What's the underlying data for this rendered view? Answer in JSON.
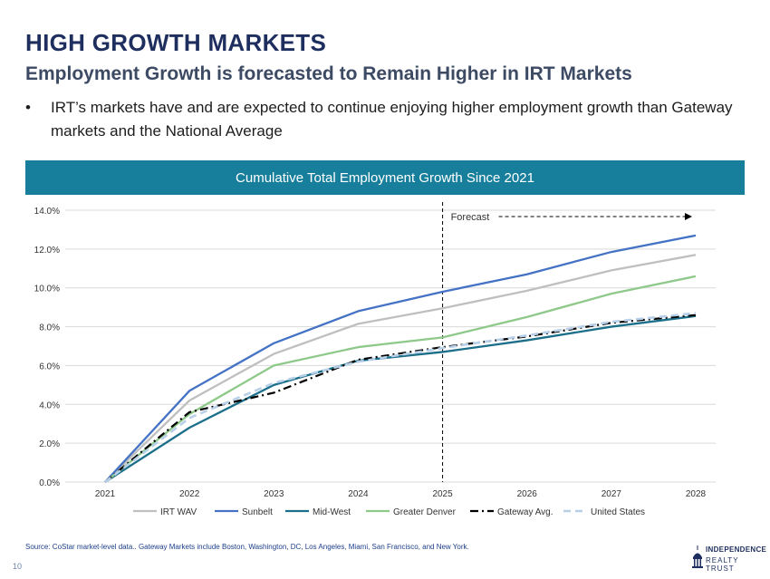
{
  "slide": {
    "title": "HIGH GROWTH MARKETS",
    "subtitle": "Employment Growth is forecasted to Remain Higher in IRT Markets",
    "bullet_marker": "•",
    "bullet": "IRT’s markets have and are expected to continue enjoying higher employment growth than Gateway markets and the National Average",
    "source": "Source: CoStar market-level data.. Gateway Markets include Boston, Washington, DC, Los Angeles, Miami, San Francisco, and New York.",
    "page_number": "10"
  },
  "logo": {
    "line1": "INDEPENDENCE",
    "line2": "REALTY TRUST"
  },
  "colors": {
    "title": "#1e2f5f",
    "header_bg": "#177f9c",
    "irt_wav": "#bfbfbf",
    "sunbelt": "#4472c4",
    "midwest": "#1b6f8a",
    "greater_denver": "#8ec98a",
    "gateway": "#000000",
    "united_states": "#b8cfe8"
  },
  "chart_data": {
    "type": "line",
    "title": "Cumulative Total Employment Growth Since 2021",
    "x": [
      "2021",
      "2022",
      "2023",
      "2024",
      "2025",
      "2026",
      "2027",
      "2028"
    ],
    "ylim": [
      0,
      14
    ],
    "yticks": [
      "0.0%",
      "2.0%",
      "4.0%",
      "6.0%",
      "8.0%",
      "10.0%",
      "12.0%",
      "14.0%"
    ],
    "xlabel": "",
    "ylabel": "",
    "forecast_label": "Forecast",
    "forecast_start": "2025",
    "legend_position": "bottom",
    "series": [
      {
        "name": "IRT WAV",
        "key": "irt_wav",
        "style": "solid",
        "values": [
          0,
          4.2,
          6.6,
          8.15,
          8.95,
          9.85,
          10.9,
          11.7
        ]
      },
      {
        "name": "Sunbelt",
        "key": "sunbelt",
        "style": "solid",
        "values": [
          0,
          4.7,
          7.15,
          8.8,
          9.8,
          10.7,
          11.85,
          12.7
        ]
      },
      {
        "name": "Mid-West",
        "key": "midwest",
        "style": "solid",
        "values": [
          0,
          2.8,
          5.0,
          6.25,
          6.7,
          7.3,
          8.0,
          8.55
        ]
      },
      {
        "name": "Greater Denver",
        "key": "greater_denver",
        "style": "solid",
        "values": [
          0,
          3.5,
          6.0,
          6.95,
          7.45,
          8.5,
          9.7,
          10.6
        ]
      },
      {
        "name": "Gateway Avg.",
        "key": "gateway",
        "style": "dashdot",
        "values": [
          0,
          3.6,
          4.6,
          6.3,
          6.95,
          7.5,
          8.2,
          8.6
        ]
      },
      {
        "name": "United States",
        "key": "united_states",
        "style": "dashed",
        "values": [
          0,
          3.3,
          5.1,
          6.2,
          6.9,
          7.55,
          8.25,
          8.7
        ]
      }
    ]
  }
}
